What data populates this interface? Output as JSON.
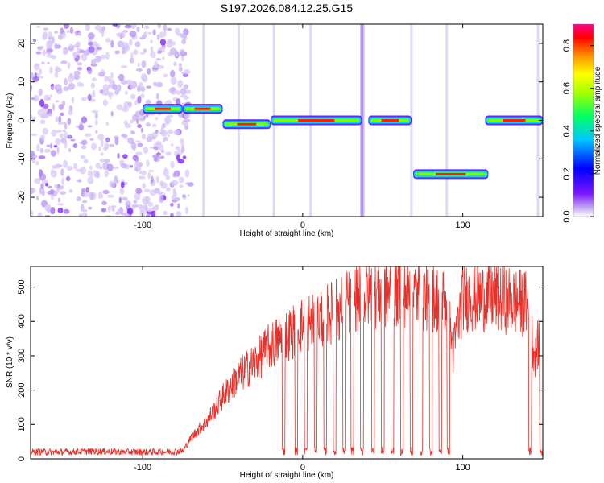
{
  "chart_data": [
    {
      "type": "heatmap",
      "title": "S197.2026.084.12.25.G15",
      "xlabel": "Height of straight line (km)",
      "ylabel": "Frequency (Hz)",
      "xlim": [
        -170,
        150
      ],
      "ylim": [
        -25,
        25
      ],
      "xticks": [
        -100,
        0,
        100
      ],
      "yticks": [
        -20,
        -10,
        0,
        10,
        20
      ],
      "colorbar": {
        "label": "Normalized spectral amplitude",
        "range": [
          0.0,
          0.9
        ],
        "ticks": [
          "0.0",
          "0.2",
          "0.4",
          "0.6",
          "0.8"
        ]
      },
      "traces": [
        {
          "x_start": -100,
          "x_end": -75,
          "freq": 3
        },
        {
          "x_start": -75,
          "x_end": -50,
          "freq": 3
        },
        {
          "x_start": -50,
          "x_end": -20,
          "freq": -1
        },
        {
          "x_start": -20,
          "x_end": 37,
          "freq": 0
        },
        {
          "x_start": 41,
          "x_end": 68,
          "freq": 0
        },
        {
          "x_start": 69,
          "x_end": 116,
          "freq": -14
        },
        {
          "x_start": 114,
          "x_end": 150,
          "freq": 0
        }
      ]
    },
    {
      "type": "line",
      "title": "",
      "xlabel": "Height of straight line (km)",
      "ylabel": "SNR (10 * v/v)",
      "xlim": [
        -170,
        150
      ],
      "ylim": [
        0,
        560
      ],
      "xticks": [
        -100,
        0,
        100
      ],
      "yticks": [
        0,
        100,
        200,
        300,
        400,
        500
      ],
      "color": "#e8302a",
      "series": [
        {
          "name": "SNR",
          "x": [
            -170,
            -150,
            -130,
            -110,
            -90,
            -75,
            -70,
            -60,
            -50,
            -40,
            -30,
            -20,
            -10,
            0,
            10,
            20,
            30,
            40,
            50,
            60,
            70,
            80,
            90,
            94,
            100,
            110,
            120,
            130,
            140,
            145,
            150
          ],
          "values": [
            20,
            20,
            22,
            20,
            20,
            22,
            60,
            110,
            180,
            240,
            280,
            330,
            360,
            390,
            410,
            430,
            460,
            480,
            480,
            490,
            480,
            470,
            460,
            310,
            470,
            470,
            470,
            460,
            450,
            300,
            380
          ]
        }
      ],
      "dropouts": [
        -12,
        -4,
        2,
        8,
        14,
        20,
        26,
        31,
        37,
        44,
        50,
        56,
        62,
        68,
        74,
        80,
        86,
        91,
        142,
        149
      ]
    }
  ]
}
